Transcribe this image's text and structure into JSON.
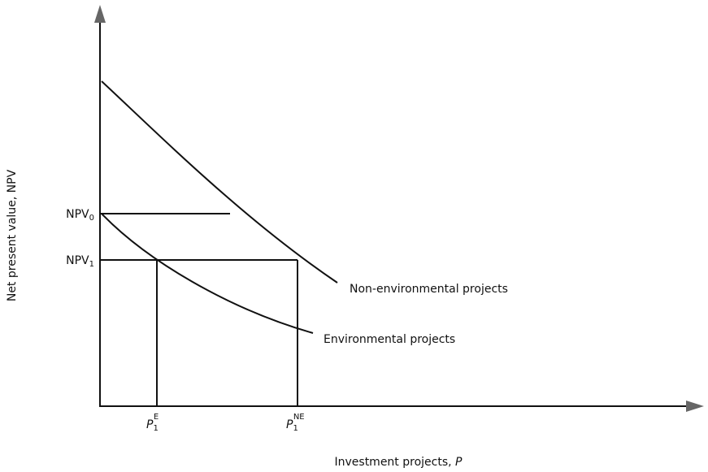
{
  "axes": {
    "y_label": "Net present value, NPV",
    "x_label": {
      "text": "Investment projects, ",
      "variable": "P"
    }
  },
  "y_ticks": [
    {
      "main": "NPV",
      "sub": "0"
    },
    {
      "main": "NPV",
      "sub": "1"
    }
  ],
  "x_ticks": [
    {
      "main": "P",
      "sub": "1",
      "sup": "E"
    },
    {
      "main": "P",
      "sub": "1",
      "sup": "NE"
    }
  ],
  "curves": [
    {
      "label": "Non-environmental projects"
    },
    {
      "label": "Environmental projects"
    }
  ]
}
